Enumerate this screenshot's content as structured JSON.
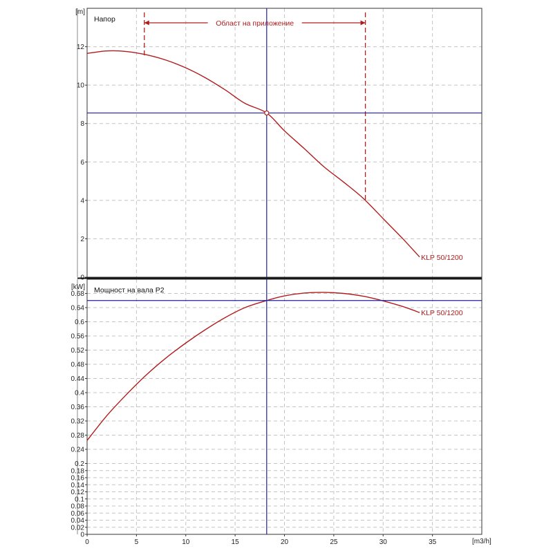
{
  "chart_data": [
    {
      "type": "line",
      "title": "Напор",
      "y_unit": "[m]",
      "x_unit": "[m3/h]",
      "xlim": [
        0,
        40
      ],
      "ylim": [
        0,
        14
      ],
      "x_ticks": [
        0,
        5,
        10,
        15,
        20,
        25,
        30,
        35
      ],
      "y_ticks": [
        0,
        2,
        4,
        6,
        8,
        10,
        12
      ],
      "grid": true,
      "series": [
        {
          "name": "KLP 50/1200",
          "color": "#b01c1c",
          "x": [
            0,
            2,
            4,
            6,
            8,
            10,
            12,
            14,
            16,
            18.2,
            20,
            22,
            24,
            26,
            28,
            30,
            32,
            33.7
          ],
          "y": [
            11.65,
            11.78,
            11.75,
            11.58,
            11.3,
            10.9,
            10.38,
            9.75,
            9.05,
            8.55,
            7.62,
            6.7,
            5.75,
            4.95,
            4.1,
            3.05,
            2.0,
            1.05
          ]
        }
      ],
      "operating_point": {
        "x": 18.2,
        "y": 8.55
      },
      "application_range": {
        "label": "Област на приложение",
        "x_min": 5.8,
        "x_max": 28.2
      }
    },
    {
      "type": "line",
      "title": "Мощност на вала P2",
      "y_unit": "[kW]",
      "x_unit": "[m3/h]",
      "xlim": [
        0,
        40
      ],
      "ylim": [
        0,
        0.72
      ],
      "x_ticks": [
        0,
        5,
        10,
        15,
        20,
        25,
        30,
        35
      ],
      "y_ticks": [
        0,
        0.02,
        0.04,
        0.06,
        0.08,
        0.1,
        0.12,
        0.14,
        0.16,
        0.18,
        0.2,
        0.24,
        0.28,
        0.32,
        0.36,
        0.4,
        0.44,
        0.48,
        0.52,
        0.56,
        0.6,
        0.64,
        0.68
      ],
      "y_tick_labels": [
        "0",
        "0.02",
        "0.04",
        "0.06",
        "0.08",
        "0.1",
        "0.12",
        "0.14",
        "0.16",
        "0.18",
        "0.2",
        "0.24",
        "0.28",
        "0.32",
        "0.36",
        "0.4",
        "0.44",
        "0.48",
        "0.52",
        "0.56",
        "0.6",
        "0.64",
        "0.68"
      ],
      "grid": true,
      "series": [
        {
          "name": "KLP 50/1200",
          "color": "#b01c1c",
          "x": [
            0,
            2,
            4,
            6,
            8,
            10,
            12,
            14,
            16,
            18.2,
            20,
            22,
            24,
            26,
            28,
            30,
            32,
            33.7
          ],
          "y": [
            0.265,
            0.335,
            0.395,
            0.45,
            0.498,
            0.54,
            0.578,
            0.612,
            0.64,
            0.66,
            0.673,
            0.681,
            0.683,
            0.68,
            0.672,
            0.659,
            0.643,
            0.626
          ]
        }
      ],
      "operating_point": {
        "x": 18.2,
        "y": 0.66
      }
    }
  ]
}
